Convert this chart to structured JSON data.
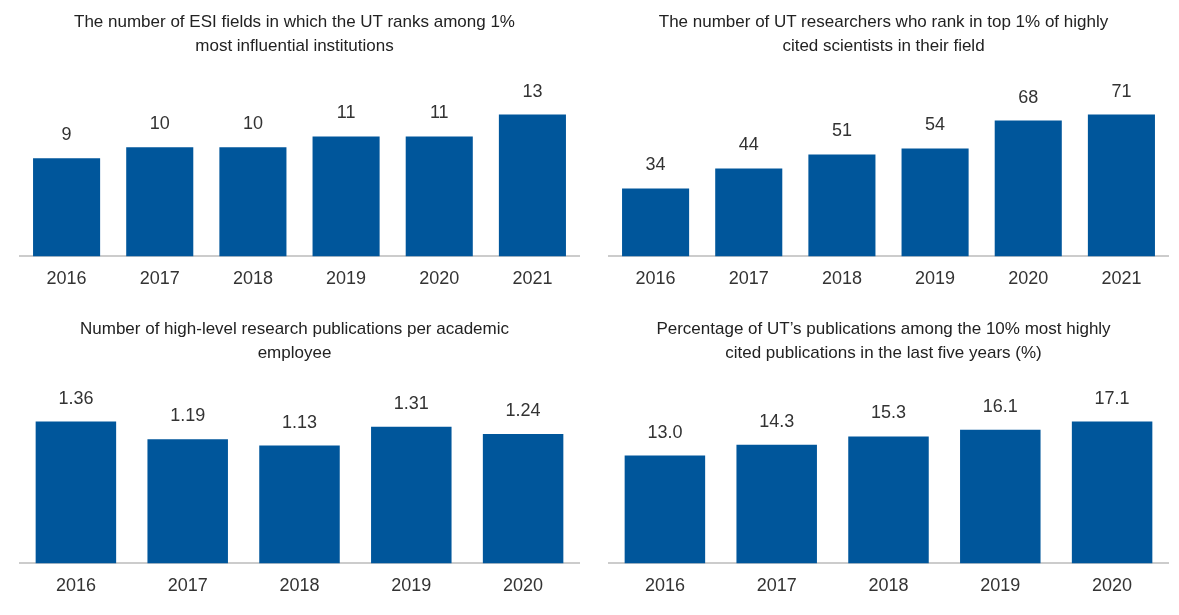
{
  "chart_data": [
    {
      "type": "bar",
      "title": "The number of ESI fields in which the UT ranks among 1% most influential institutions",
      "categories": [
        "2016",
        "2017",
        "2018",
        "2019",
        "2020",
        "2021"
      ],
      "values": [
        9,
        10,
        10,
        11,
        11,
        13
      ],
      "color": "#00569b",
      "data_labels": true,
      "tick_labels": "x"
    },
    {
      "type": "bar",
      "title": "The number of UT researchers who rank in top 1% of highly cited scientists in their field",
      "categories": [
        "2016",
        "2017",
        "2018",
        "2019",
        "2020",
        "2021"
      ],
      "values": [
        34,
        44,
        51,
        54,
        68,
        71
      ],
      "color": "#00569b",
      "data_labels": true,
      "tick_labels": "x"
    },
    {
      "type": "bar",
      "title": "Number of high-level research publications per academic employee",
      "categories": [
        "2016",
        "2017",
        "2018",
        "2019",
        "2020"
      ],
      "values": [
        1.36,
        1.19,
        1.13,
        1.31,
        1.24
      ],
      "color": "#00569b",
      "data_labels": true,
      "tick_labels": "x"
    },
    {
      "type": "bar",
      "title": "Percentage of UT’s publications among the 10% most highly cited publications in the last five years (%)",
      "categories": [
        "2016",
        "2017",
        "2018",
        "2019",
        "2020"
      ],
      "values": [
        13.0,
        14.3,
        15.3,
        16.1,
        17.1
      ],
      "value_labels": [
        "13.0",
        "14.3",
        "15.3",
        "16.1",
        "17.1"
      ],
      "color": "#00569b",
      "tick_labels": "x"
    }
  ]
}
